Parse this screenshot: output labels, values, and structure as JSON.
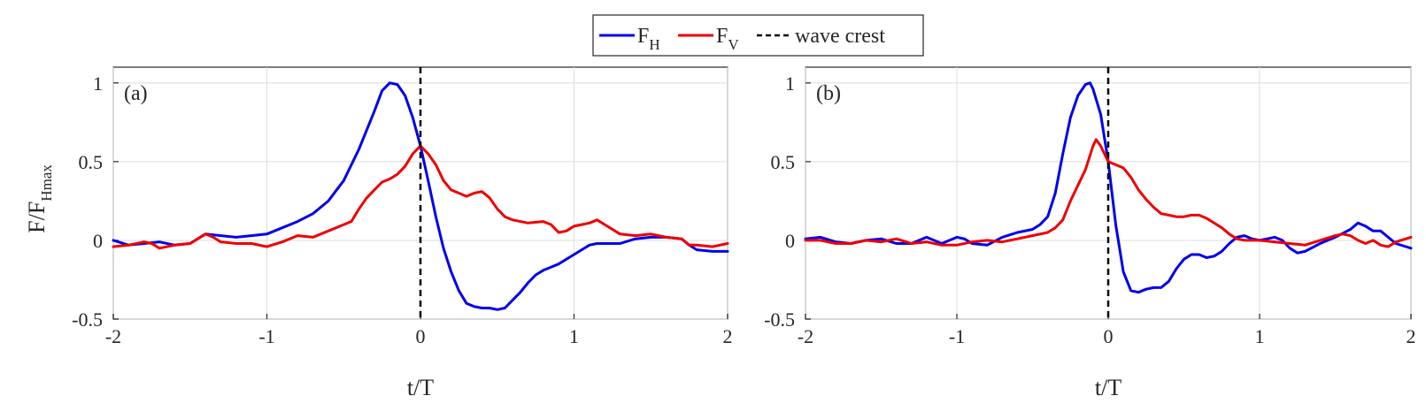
{
  "legend": {
    "entries": [
      {
        "name": "F",
        "sub": "H",
        "color": "#0000ee",
        "style": "solid"
      },
      {
        "name": "F",
        "sub": "V",
        "color": "#ee0000",
        "style": "solid"
      },
      {
        "name": "wave crest",
        "sub": "",
        "color": "#000000",
        "style": "dashed"
      }
    ]
  },
  "ylabel": {
    "main": "F/F",
    "sub": "Hmax"
  },
  "xlabel": "t/T",
  "chart_data": [
    {
      "type": "line",
      "panel_label": "(a)",
      "xlabel": "t/T",
      "ylabel": "F/F_Hmax",
      "xlim": [
        -2,
        2
      ],
      "ylim": [
        -0.5,
        1.1
      ],
      "xticks": [
        -2,
        -1,
        0,
        1,
        2
      ],
      "yticks": [
        -0.5,
        0,
        0.5,
        1
      ],
      "xtick_labels": [
        "-2",
        "-1",
        "0",
        "1",
        "2"
      ],
      "ytick_labels": [
        "-0.5",
        "0",
        "0.5",
        "1"
      ],
      "grid": true,
      "crest_x": 0,
      "series": [
        {
          "name": "F_H",
          "color": "#0000ee",
          "points": [
            [
              -2,
              0.0
            ],
            [
              -1.9,
              -0.03
            ],
            [
              -1.8,
              -0.02
            ],
            [
              -1.7,
              -0.01
            ],
            [
              -1.6,
              -0.03
            ],
            [
              -1.5,
              -0.02
            ],
            [
              -1.4,
              0.04
            ],
            [
              -1.3,
              0.03
            ],
            [
              -1.2,
              0.02
            ],
            [
              -1.1,
              0.03
            ],
            [
              -1.0,
              0.04
            ],
            [
              -0.9,
              0.08
            ],
            [
              -0.8,
              0.12
            ],
            [
              -0.7,
              0.17
            ],
            [
              -0.6,
              0.25
            ],
            [
              -0.5,
              0.38
            ],
            [
              -0.4,
              0.58
            ],
            [
              -0.3,
              0.82
            ],
            [
              -0.25,
              0.95
            ],
            [
              -0.2,
              1.0
            ],
            [
              -0.15,
              0.99
            ],
            [
              -0.1,
              0.92
            ],
            [
              -0.05,
              0.78
            ],
            [
              0.0,
              0.6
            ],
            [
              0.05,
              0.38
            ],
            [
              0.1,
              0.15
            ],
            [
              0.15,
              -0.05
            ],
            [
              0.2,
              -0.2
            ],
            [
              0.25,
              -0.32
            ],
            [
              0.3,
              -0.4
            ],
            [
              0.35,
              -0.42
            ],
            [
              0.4,
              -0.43
            ],
            [
              0.45,
              -0.43
            ],
            [
              0.5,
              -0.44
            ],
            [
              0.55,
              -0.43
            ],
            [
              0.6,
              -0.38
            ],
            [
              0.65,
              -0.33
            ],
            [
              0.7,
              -0.27
            ],
            [
              0.75,
              -0.22
            ],
            [
              0.8,
              -0.19
            ],
            [
              0.85,
              -0.17
            ],
            [
              0.9,
              -0.15
            ],
            [
              0.95,
              -0.12
            ],
            [
              1.0,
              -0.09
            ],
            [
              1.05,
              -0.06
            ],
            [
              1.1,
              -0.03
            ],
            [
              1.15,
              -0.02
            ],
            [
              1.2,
              -0.02
            ],
            [
              1.3,
              -0.02
            ],
            [
              1.4,
              0.01
            ],
            [
              1.5,
              0.02
            ],
            [
              1.6,
              0.02
            ],
            [
              1.7,
              0.01
            ],
            [
              1.75,
              -0.03
            ],
            [
              1.8,
              -0.06
            ],
            [
              1.9,
              -0.07
            ],
            [
              2.0,
              -0.07
            ]
          ]
        },
        {
          "name": "F_V",
          "color": "#ee0000",
          "points": [
            [
              -2,
              -0.04
            ],
            [
              -1.9,
              -0.03
            ],
            [
              -1.8,
              -0.01
            ],
            [
              -1.75,
              -0.02
            ],
            [
              -1.7,
              -0.05
            ],
            [
              -1.6,
              -0.03
            ],
            [
              -1.5,
              -0.02
            ],
            [
              -1.4,
              0.04
            ],
            [
              -1.35,
              0.02
            ],
            [
              -1.3,
              -0.01
            ],
            [
              -1.2,
              -0.02
            ],
            [
              -1.1,
              -0.02
            ],
            [
              -1.0,
              -0.04
            ],
            [
              -0.9,
              -0.01
            ],
            [
              -0.8,
              0.03
            ],
            [
              -0.7,
              0.02
            ],
            [
              -0.6,
              0.06
            ],
            [
              -0.5,
              0.1
            ],
            [
              -0.45,
              0.12
            ],
            [
              -0.4,
              0.2
            ],
            [
              -0.35,
              0.27
            ],
            [
              -0.3,
              0.32
            ],
            [
              -0.25,
              0.37
            ],
            [
              -0.2,
              0.39
            ],
            [
              -0.15,
              0.42
            ],
            [
              -0.1,
              0.47
            ],
            [
              -0.05,
              0.55
            ],
            [
              0.0,
              0.6
            ],
            [
              0.05,
              0.55
            ],
            [
              0.1,
              0.48
            ],
            [
              0.15,
              0.38
            ],
            [
              0.2,
              0.32
            ],
            [
              0.25,
              0.3
            ],
            [
              0.3,
              0.28
            ],
            [
              0.35,
              0.3
            ],
            [
              0.4,
              0.31
            ],
            [
              0.45,
              0.27
            ],
            [
              0.5,
              0.2
            ],
            [
              0.55,
              0.15
            ],
            [
              0.6,
              0.13
            ],
            [
              0.7,
              0.11
            ],
            [
              0.8,
              0.12
            ],
            [
              0.85,
              0.1
            ],
            [
              0.9,
              0.05
            ],
            [
              0.95,
              0.06
            ],
            [
              1.0,
              0.09
            ],
            [
              1.05,
              0.1
            ],
            [
              1.1,
              0.11
            ],
            [
              1.15,
              0.13
            ],
            [
              1.2,
              0.1
            ],
            [
              1.3,
              0.04
            ],
            [
              1.4,
              0.03
            ],
            [
              1.5,
              0.04
            ],
            [
              1.6,
              0.02
            ],
            [
              1.7,
              0.01
            ],
            [
              1.75,
              -0.03
            ],
            [
              1.8,
              -0.03
            ],
            [
              1.9,
              -0.04
            ],
            [
              2.0,
              -0.02
            ]
          ]
        }
      ]
    },
    {
      "type": "line",
      "panel_label": "(b)",
      "xlabel": "t/T",
      "ylabel": "",
      "xlim": [
        -2,
        2
      ],
      "ylim": [
        -0.5,
        1.1
      ],
      "xticks": [
        -2,
        -1,
        0,
        1,
        2
      ],
      "yticks": [
        -0.5,
        0,
        0.5,
        1
      ],
      "xtick_labels": [
        "-2",
        "-1",
        "0",
        "1",
        "2"
      ],
      "ytick_labels": [
        "-0.5",
        "0",
        "0.5",
        "1"
      ],
      "grid": true,
      "crest_x": 0,
      "series": [
        {
          "name": "F_H",
          "color": "#0000ee",
          "points": [
            [
              -2,
              0.01
            ],
            [
              -1.9,
              0.02
            ],
            [
              -1.8,
              -0.01
            ],
            [
              -1.7,
              -0.02
            ],
            [
              -1.6,
              0.0
            ],
            [
              -1.5,
              0.01
            ],
            [
              -1.4,
              -0.02
            ],
            [
              -1.3,
              -0.02
            ],
            [
              -1.2,
              0.02
            ],
            [
              -1.1,
              -0.02
            ],
            [
              -1.0,
              0.02
            ],
            [
              -0.95,
              0.01
            ],
            [
              -0.9,
              -0.02
            ],
            [
              -0.8,
              -0.03
            ],
            [
              -0.7,
              0.02
            ],
            [
              -0.6,
              0.05
            ],
            [
              -0.5,
              0.07
            ],
            [
              -0.45,
              0.1
            ],
            [
              -0.4,
              0.15
            ],
            [
              -0.35,
              0.3
            ],
            [
              -0.3,
              0.55
            ],
            [
              -0.25,
              0.78
            ],
            [
              -0.2,
              0.92
            ],
            [
              -0.15,
              0.99
            ],
            [
              -0.12,
              1.0
            ],
            [
              -0.1,
              0.96
            ],
            [
              -0.05,
              0.8
            ],
            [
              0.0,
              0.5
            ],
            [
              0.05,
              0.1
            ],
            [
              0.1,
              -0.2
            ],
            [
              0.15,
              -0.32
            ],
            [
              0.2,
              -0.33
            ],
            [
              0.25,
              -0.31
            ],
            [
              0.3,
              -0.3
            ],
            [
              0.35,
              -0.3
            ],
            [
              0.4,
              -0.26
            ],
            [
              0.45,
              -0.18
            ],
            [
              0.5,
              -0.12
            ],
            [
              0.55,
              -0.09
            ],
            [
              0.6,
              -0.09
            ],
            [
              0.65,
              -0.11
            ],
            [
              0.7,
              -0.1
            ],
            [
              0.75,
              -0.07
            ],
            [
              0.8,
              -0.02
            ],
            [
              0.85,
              0.02
            ],
            [
              0.9,
              0.03
            ],
            [
              0.95,
              0.01
            ],
            [
              1.0,
              0.0
            ],
            [
              1.05,
              0.01
            ],
            [
              1.1,
              0.02
            ],
            [
              1.15,
              0.0
            ],
            [
              1.2,
              -0.05
            ],
            [
              1.25,
              -0.08
            ],
            [
              1.3,
              -0.07
            ],
            [
              1.4,
              -0.02
            ],
            [
              1.5,
              0.02
            ],
            [
              1.6,
              0.07
            ],
            [
              1.65,
              0.11
            ],
            [
              1.7,
              0.09
            ],
            [
              1.75,
              0.06
            ],
            [
              1.8,
              0.06
            ],
            [
              1.85,
              0.02
            ],
            [
              1.9,
              -0.02
            ],
            [
              2.0,
              -0.05
            ]
          ]
        },
        {
          "name": "F_V",
          "color": "#ee0000",
          "points": [
            [
              -2,
              0.0
            ],
            [
              -1.9,
              0.0
            ],
            [
              -1.8,
              -0.02
            ],
            [
              -1.7,
              -0.02
            ],
            [
              -1.6,
              0.0
            ],
            [
              -1.5,
              -0.01
            ],
            [
              -1.4,
              0.01
            ],
            [
              -1.3,
              -0.02
            ],
            [
              -1.2,
              -0.01
            ],
            [
              -1.1,
              -0.03
            ],
            [
              -1.0,
              -0.03
            ],
            [
              -0.9,
              -0.01
            ],
            [
              -0.8,
              0.0
            ],
            [
              -0.7,
              -0.01
            ],
            [
              -0.6,
              0.01
            ],
            [
              -0.5,
              0.03
            ],
            [
              -0.4,
              0.05
            ],
            [
              -0.35,
              0.08
            ],
            [
              -0.3,
              0.13
            ],
            [
              -0.25,
              0.25
            ],
            [
              -0.2,
              0.35
            ],
            [
              -0.15,
              0.45
            ],
            [
              -0.1,
              0.6
            ],
            [
              -0.08,
              0.64
            ],
            [
              -0.05,
              0.6
            ],
            [
              0.0,
              0.5
            ],
            [
              0.05,
              0.48
            ],
            [
              0.1,
              0.46
            ],
            [
              0.15,
              0.4
            ],
            [
              0.2,
              0.32
            ],
            [
              0.25,
              0.26
            ],
            [
              0.3,
              0.21
            ],
            [
              0.35,
              0.17
            ],
            [
              0.4,
              0.16
            ],
            [
              0.45,
              0.15
            ],
            [
              0.5,
              0.15
            ],
            [
              0.55,
              0.16
            ],
            [
              0.6,
              0.16
            ],
            [
              0.65,
              0.14
            ],
            [
              0.7,
              0.11
            ],
            [
              0.75,
              0.08
            ],
            [
              0.8,
              0.04
            ],
            [
              0.85,
              0.01
            ],
            [
              0.9,
              0.0
            ],
            [
              1.0,
              0.0
            ],
            [
              1.1,
              -0.01
            ],
            [
              1.2,
              -0.02
            ],
            [
              1.3,
              -0.03
            ],
            [
              1.4,
              0.0
            ],
            [
              1.5,
              0.03
            ],
            [
              1.55,
              0.04
            ],
            [
              1.6,
              0.03
            ],
            [
              1.65,
              0.0
            ],
            [
              1.7,
              -0.02
            ],
            [
              1.75,
              0.0
            ],
            [
              1.8,
              -0.03
            ],
            [
              1.85,
              -0.04
            ],
            [
              1.9,
              -0.01
            ],
            [
              2.0,
              0.02
            ]
          ]
        }
      ]
    }
  ]
}
